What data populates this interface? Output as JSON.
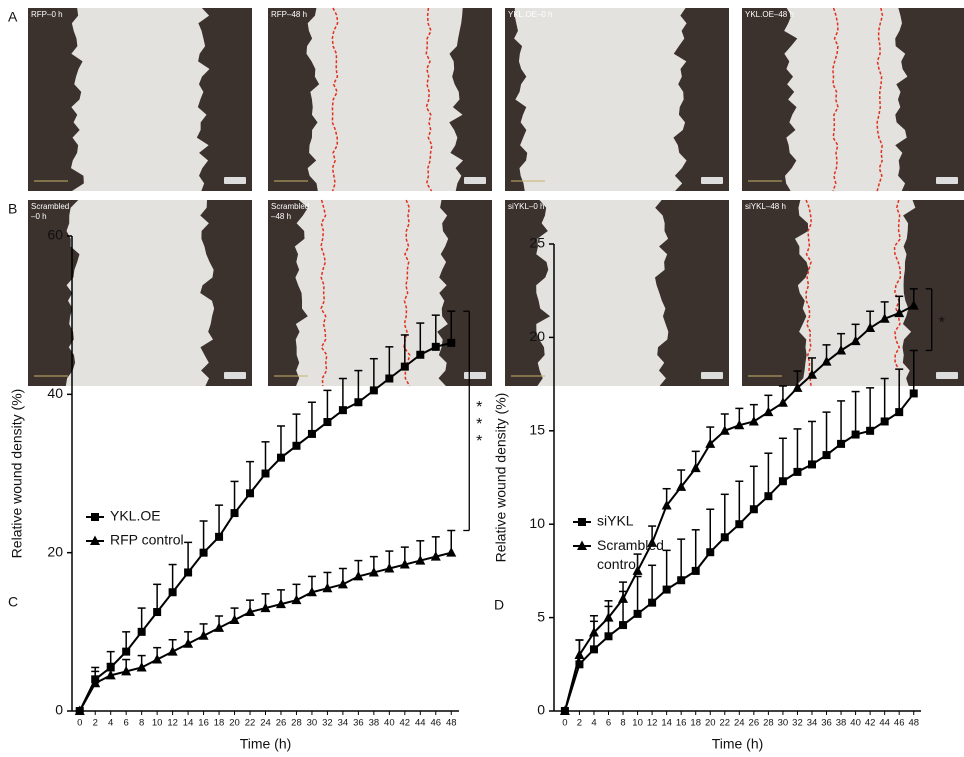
{
  "panels": [
    {
      "letter": "A",
      "images": [
        [
          "RFP–0 h"
        ],
        [
          "RFP–48 h"
        ],
        [
          "YKL.OE–0 h"
        ],
        [
          "YKL.OE–48 h"
        ]
      ]
    },
    {
      "letter": "B",
      "images": [
        [
          "Scrambled",
          "–0 h"
        ],
        [
          "Scrambled",
          "–48 h"
        ],
        [
          "siYKL–0 h"
        ],
        [
          "siYKL–48 h"
        ]
      ]
    }
  ],
  "chart_data": [
    {
      "type": "line",
      "panel": "C",
      "xlabel": "Time (h)",
      "ylabel": "Relative wound density (%)",
      "x": [
        0,
        2,
        4,
        6,
        8,
        10,
        12,
        14,
        16,
        18,
        20,
        22,
        24,
        26,
        28,
        30,
        32,
        34,
        36,
        38,
        40,
        42,
        44,
        46,
        48
      ],
      "xlim": [
        -1,
        49
      ],
      "xticks": [
        0,
        2,
        4,
        6,
        8,
        10,
        12,
        14,
        16,
        18,
        20,
        22,
        24,
        26,
        28,
        30,
        32,
        34,
        36,
        38,
        40,
        42,
        44,
        46,
        48
      ],
      "ylim": [
        0,
        60
      ],
      "yticks": [
        0,
        20,
        40,
        60
      ],
      "legend": "upper left",
      "series": [
        {
          "name": "YKL.OE",
          "color": "#000000",
          "marker": "square",
          "values": [
            0,
            4,
            5.5,
            7.5,
            10,
            12.5,
            15,
            17.5,
            20,
            22,
            25,
            27.5,
            30,
            32,
            33.5,
            35,
            36.5,
            38,
            39,
            40.5,
            42,
            43.5,
            45,
            46,
            46.5
          ],
          "errors": [
            0,
            1.5,
            2,
            2.5,
            3,
            3.5,
            3.5,
            3.8,
            4,
            4,
            4,
            4,
            4,
            4,
            4,
            4,
            4,
            4,
            4,
            4,
            4,
            4,
            4,
            4,
            4
          ]
        },
        {
          "name": "RFP control",
          "color": "#000000",
          "marker": "triangle",
          "values": [
            0,
            3.5,
            4.5,
            5,
            5.5,
            6.5,
            7.5,
            8.5,
            9.5,
            10.5,
            11.5,
            12.5,
            13,
            13.5,
            14,
            15,
            15.5,
            16,
            17,
            17.5,
            18,
            18.5,
            19,
            19.5,
            20
          ],
          "errors": [
            0,
            1.5,
            1.5,
            1.5,
            1.5,
            1.5,
            1.5,
            1.5,
            1.5,
            1.5,
            1.5,
            1.5,
            1.8,
            1.8,
            2,
            2,
            2,
            2,
            2,
            2,
            2.2,
            2.2,
            2.5,
            2.5,
            2.8
          ]
        }
      ],
      "annotation": "***"
    },
    {
      "type": "line",
      "panel": "D",
      "xlabel": "Time (h)",
      "ylabel": "Relative wound density (%)",
      "x": [
        0,
        2,
        4,
        6,
        8,
        10,
        12,
        14,
        16,
        18,
        20,
        22,
        24,
        26,
        28,
        30,
        32,
        34,
        36,
        38,
        40,
        42,
        44,
        46,
        48
      ],
      "xlim": [
        -1.5,
        49
      ],
      "xticks": [
        0,
        2,
        4,
        6,
        8,
        10,
        12,
        14,
        16,
        18,
        20,
        22,
        24,
        26,
        28,
        30,
        32,
        34,
        36,
        38,
        40,
        42,
        44,
        46,
        48
      ],
      "ylim": [
        0,
        25
      ],
      "yticks": [
        0,
        5,
        10,
        15,
        20,
        25
      ],
      "legend": "upper left",
      "series": [
        {
          "name": "siYKL",
          "color": "#000000",
          "marker": "square",
          "values": [
            0,
            2.5,
            3.3,
            4,
            4.6,
            5.2,
            5.8,
            6.5,
            7,
            7.5,
            8.5,
            9.3,
            10,
            10.8,
            11.5,
            12.3,
            12.8,
            13.2,
            13.7,
            14.3,
            14.8,
            15,
            15.5,
            16,
            17
          ],
          "errors": [
            0,
            1.3,
            1.5,
            1.6,
            1.8,
            2,
            2,
            2.1,
            2.2,
            2.2,
            2.3,
            2.3,
            2.3,
            2.3,
            2.3,
            2.3,
            2.3,
            2.3,
            2.3,
            2.3,
            2.3,
            2.3,
            2.3,
            2.3,
            2.3
          ]
        },
        {
          "name": "Scrambled control",
          "color": "#000000",
          "marker": "triangle",
          "values": [
            0,
            3,
            4.2,
            5,
            6,
            7.5,
            9,
            11,
            12,
            13,
            14.3,
            15,
            15.3,
            15.5,
            16,
            16.5,
            17.3,
            18,
            18.7,
            19.3,
            19.8,
            20.5,
            21,
            21.3,
            21.7
          ],
          "errors": [
            0,
            0.8,
            0.9,
            0.9,
            0.9,
            0.9,
            0.9,
            0.9,
            0.9,
            0.9,
            0.9,
            0.9,
            0.9,
            0.9,
            0.9,
            0.9,
            0.9,
            0.9,
            0.9,
            0.9,
            0.9,
            0.9,
            0.9,
            0.9,
            0.9
          ]
        }
      ],
      "annotation": "*"
    }
  ]
}
